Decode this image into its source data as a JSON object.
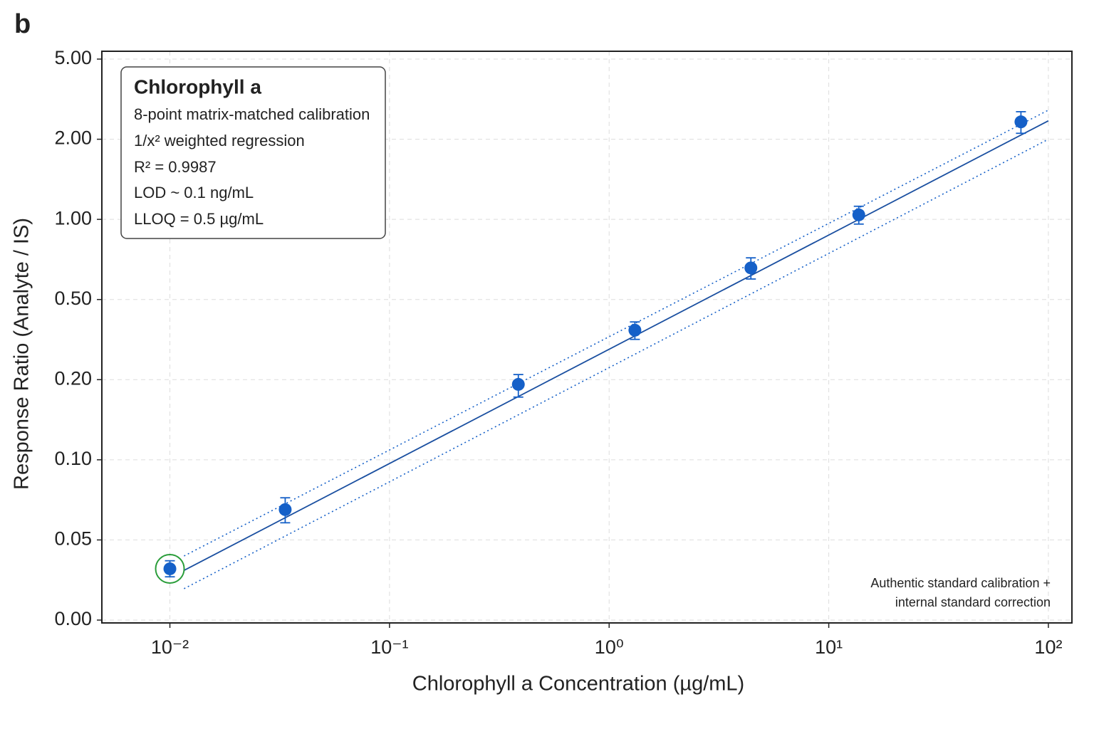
{
  "panel_label": "b",
  "chart_data": {
    "type": "scatter",
    "x_label": "Chlorophyll a Concentration (µg/mL)",
    "y_label": "Response Ratio (Analyte / IS)",
    "x_log": true,
    "grid": true,
    "xlim": [
      0.0049,
      128
    ],
    "xticks": [
      {
        "value": 0.01,
        "label": "10⁻²"
      },
      {
        "value": 0.1,
        "label": "10⁻¹"
      },
      {
        "value": 1,
        "label": "10⁰"
      },
      {
        "value": 10,
        "label": "10¹"
      },
      {
        "value": 100,
        "label": "10²"
      }
    ],
    "ylim": [
      0,
      5
    ],
    "yticks": [
      {
        "value": 0,
        "label": "0.00"
      },
      0.05,
      {
        "value": 0.1,
        "label": "0.10"
      },
      {
        "value": 0.2,
        "label": "0.20"
      },
      {
        "value": 0.5,
        "label": "0.50"
      },
      {
        "value": 1,
        "label": "1.00"
      },
      {
        "value": 2,
        "label": "2.00"
      },
      {
        "value": 5,
        "label": "5.00"
      }
    ],
    "series": [
      {
        "color": "#1560c8",
        "x": [
          0.01,
          0.0335,
          0.386,
          1.31,
          4.42,
          13.7,
          75
        ],
        "values": [
          0.032,
          0.065,
          0.192,
          0.352,
          0.657,
          1.04,
          2.44
        ],
        "errors": [
          0.005,
          0.007,
          0.02,
          0.035,
          0.06,
          0.08,
          0.3
        ]
      }
    ],
    "fit": {
      "color": "#1a4fa0",
      "x": [
        0.0116,
        100
      ],
      "values": [
        0.031,
        2.47
      ]
    },
    "band_upper": {
      "x": [
        0.0116,
        100
      ],
      "values": [
        0.04,
        2.79
      ]
    },
    "band_lower": {
      "x": [
        0.0116,
        100
      ],
      "values": [
        0.0196,
        2.0
      ]
    },
    "highlight": {
      "color": "#2a9d3a"
    },
    "info_box": {
      "title": "Chlorophyll a",
      "lines": [
        "8-point matrix-matched calibration",
        "1/x² weighted regression",
        "R² = 0.9987",
        "LOD ~ 0.1 ng/mL",
        "LLOQ = 0.5 µg/mL"
      ]
    },
    "annotation": [
      "Authentic standard calibration +",
      "internal standard correction"
    ]
  }
}
